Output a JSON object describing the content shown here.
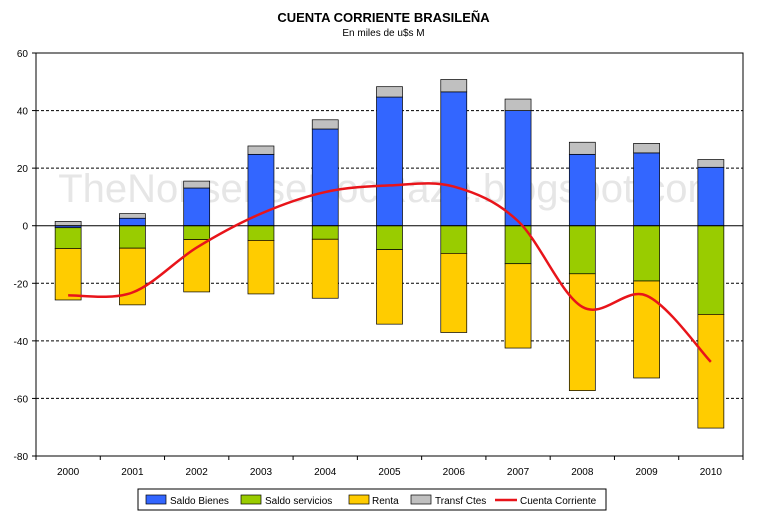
{
  "chart_data": {
    "type": "bar",
    "title": "CUENTA CORRIENTE BRASILEÑA",
    "subtitle": "En miles de u$s M",
    "watermark": "TheNonsenseRocRaze.blogspot.com",
    "categories": [
      "2000",
      "2001",
      "2002",
      "2003",
      "2004",
      "2005",
      "2006",
      "2007",
      "2008",
      "2009",
      "2010"
    ],
    "ylim": [
      -80,
      60
    ],
    "yticks": [
      -80,
      -60,
      -40,
      -20,
      0,
      20,
      40,
      60
    ],
    "grid": true,
    "legend_position": "bottom",
    "series": [
      {
        "name": "Saldo Bienes",
        "type": "bar",
        "color": "#3366ff",
        "values": [
          -0.7,
          2.6,
          13.1,
          24.8,
          33.6,
          44.7,
          46.5,
          40.0,
          24.8,
          25.3,
          20.3
        ]
      },
      {
        "name": "Saldo servicios",
        "type": "bar",
        "color": "#99cc00",
        "values": [
          -7.2,
          -7.8,
          -4.8,
          -5.1,
          -4.7,
          -8.3,
          -9.6,
          -13.2,
          -16.7,
          -19.2,
          -30.8
        ]
      },
      {
        "name": "Renta",
        "type": "bar",
        "color": "#ffcc00",
        "values": [
          -17.9,
          -19.7,
          -18.2,
          -18.6,
          -20.5,
          -25.9,
          -27.5,
          -29.3,
          -40.6,
          -33.7,
          -39.5
        ]
      },
      {
        "name": "Transf Ctes",
        "type": "bar",
        "color": "#c0c0c0",
        "values": [
          1.5,
          1.6,
          2.4,
          2.9,
          3.2,
          3.6,
          4.3,
          4.0,
          4.2,
          3.3,
          2.7
        ]
      },
      {
        "name": "Cuenta Corriente",
        "type": "line",
        "color": "#e8141a",
        "values": [
          -24.2,
          -23.2,
          -7.6,
          4.2,
          11.7,
          14.0,
          13.6,
          1.6,
          -28.2,
          -24.3,
          -47.3
        ]
      }
    ]
  }
}
